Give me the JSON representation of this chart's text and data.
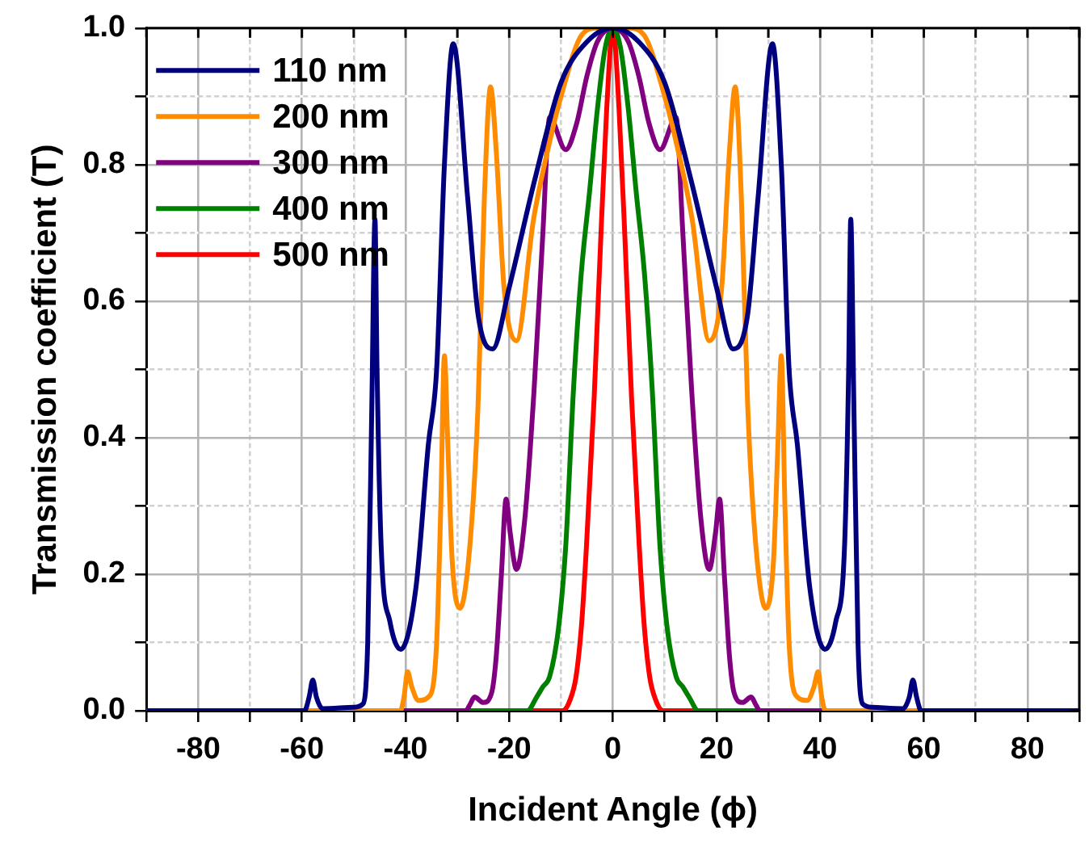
{
  "chart_data": {
    "type": "line",
    "xlabel": "Incident Angle (ϕ)",
    "ylabel": "Transmission coefficient (T)",
    "xlim": [
      -90,
      90
    ],
    "ylim": [
      0,
      1
    ],
    "xticks": [
      {
        "value": -90,
        "label": null
      },
      -80,
      {
        "value": -70,
        "label": null
      },
      -60,
      {
        "value": -50,
        "label": null
      },
      -40,
      {
        "value": -30,
        "label": null
      },
      -20,
      {
        "value": -10,
        "label": null
      },
      0,
      {
        "value": 10,
        "label": null
      },
      20,
      {
        "value": 30,
        "label": null
      },
      40,
      {
        "value": 50,
        "label": null
      },
      60,
      {
        "value": 70,
        "label": null
      },
      80,
      {
        "value": 90,
        "label": null
      }
    ],
    "yticks": [
      {
        "value": 0,
        "label": "0.0"
      },
      {
        "value": 0.1,
        "label": null
      },
      {
        "value": 0.2,
        "label": "0.2"
      },
      {
        "value": 0.3,
        "label": null
      },
      {
        "value": 0.4,
        "label": "0.4"
      },
      {
        "value": 0.5,
        "label": null
      },
      {
        "value": 0.6,
        "label": "0.6"
      },
      {
        "value": 0.7,
        "label": null
      },
      {
        "value": 0.8,
        "label": "0.8"
      },
      {
        "value": 0.9,
        "label": null
      },
      {
        "value": 1,
        "label": "1.0"
      }
    ],
    "grid": true,
    "legend": "top left",
    "marker": "none",
    "line_style": "solid",
    "series": [
      {
        "name": "110 nm",
        "color": "#00007f",
        "x": [
          -90,
          -59.5,
          -58.6,
          -57.9,
          -57.2,
          -56,
          -50,
          -48.2,
          -47.3,
          -46.5,
          -45.9,
          -45.5,
          -44.7,
          -43,
          -40.9,
          -38,
          -35.6,
          -34,
          -32.5,
          -30.8,
          -28,
          -26,
          -23.2,
          -20,
          -15,
          -10,
          -5,
          0,
          5,
          10,
          15,
          20,
          23.2,
          26,
          28,
          30.8,
          32.5,
          34,
          35.6,
          38,
          40.9,
          43,
          44.7,
          45.5,
          45.9,
          46.5,
          47.3,
          48.2,
          50,
          56,
          57.2,
          57.9,
          58.6,
          59.5,
          90
        ],
        "values": [
          0,
          0,
          0.02,
          0.045,
          0.02,
          0.003,
          0.005,
          0.01,
          0.1,
          0.45,
          0.72,
          0.5,
          0.24,
          0.13,
          0.09,
          0.18,
          0.39,
          0.5,
          0.8,
          0.977,
          0.75,
          0.58,
          0.53,
          0.62,
          0.78,
          0.92,
          0.98,
          1,
          0.98,
          0.92,
          0.78,
          0.62,
          0.53,
          0.58,
          0.75,
          0.977,
          0.8,
          0.5,
          0.39,
          0.18,
          0.09,
          0.13,
          0.24,
          0.5,
          0.72,
          0.45,
          0.1,
          0.01,
          0.005,
          0.003,
          0.02,
          0.045,
          0.02,
          0,
          0
        ]
      },
      {
        "name": "200 nm",
        "color": "#ff8c00",
        "x": [
          -90,
          -41,
          -40.3,
          -39.6,
          -38.8,
          -37.5,
          -35.6,
          -34,
          -33.2,
          -32.5,
          -31.8,
          -31,
          -29.5,
          -27.5,
          -26,
          -24.8,
          -23.6,
          -22.5,
          -21,
          -18.6,
          -15.3,
          -12,
          -10,
          -6,
          -3,
          0,
          3,
          6,
          10,
          12,
          15.3,
          18.6,
          21,
          22.5,
          23.6,
          24.8,
          26,
          27.5,
          29.5,
          31,
          31.8,
          32.5,
          33.2,
          34,
          35.6,
          37.5,
          38.8,
          39.6,
          40.3,
          41,
          90
        ],
        "values": [
          0,
          0,
          0.02,
          0.057,
          0.035,
          0.015,
          0.02,
          0.1,
          0.3,
          0.52,
          0.38,
          0.22,
          0.15,
          0.25,
          0.45,
          0.75,
          0.914,
          0.82,
          0.62,
          0.542,
          0.72,
          0.84,
          0.9,
          0.99,
          1,
          1,
          1,
          0.99,
          0.9,
          0.84,
          0.72,
          0.542,
          0.62,
          0.82,
          0.914,
          0.75,
          0.45,
          0.25,
          0.15,
          0.22,
          0.38,
          0.52,
          0.3,
          0.1,
          0.02,
          0.015,
          0.035,
          0.057,
          0.02,
          0,
          0
        ]
      },
      {
        "name": "300 nm",
        "color": "#800080",
        "x": [
          -90,
          -28.4,
          -27.5,
          -26.7,
          -25,
          -23.4,
          -22.5,
          -21.5,
          -20.6,
          -19.8,
          -18.6,
          -17,
          -15.2,
          -13.5,
          -12.2,
          -9.1,
          -7,
          -5,
          -3,
          0,
          3,
          5,
          7,
          9.1,
          12.2,
          13.5,
          15.2,
          17,
          18.6,
          19.8,
          20.6,
          21.5,
          22.5,
          23.4,
          25,
          26.7,
          27.5,
          28.4,
          90
        ],
        "values": [
          0,
          0,
          0.01,
          0.02,
          0.012,
          0.026,
          0.08,
          0.2,
          0.31,
          0.26,
          0.207,
          0.28,
          0.47,
          0.7,
          0.869,
          0.822,
          0.86,
          0.93,
          0.98,
          1,
          0.98,
          0.93,
          0.86,
          0.822,
          0.869,
          0.7,
          0.47,
          0.28,
          0.207,
          0.26,
          0.31,
          0.2,
          0.08,
          0.026,
          0.012,
          0.02,
          0.01,
          0,
          0
        ]
      },
      {
        "name": "400 nm",
        "color": "#008000",
        "x": [
          -90,
          -16.5,
          -14.7,
          -13.5,
          -12.2,
          -10.5,
          -9.1,
          -7.6,
          -6.1,
          -4.5,
          -3,
          -1.5,
          0,
          1.5,
          3,
          4.5,
          6.1,
          7.6,
          9.1,
          10.5,
          12.2,
          13.5,
          14.7,
          16.5,
          90
        ],
        "values": [
          0,
          0,
          0.02,
          0.035,
          0.05,
          0.12,
          0.24,
          0.47,
          0.64,
          0.76,
          0.88,
          0.97,
          1,
          0.97,
          0.88,
          0.76,
          0.64,
          0.47,
          0.24,
          0.12,
          0.05,
          0.035,
          0.02,
          0,
          0
        ]
      },
      {
        "name": "500 nm",
        "color": "#ff0000",
        "x": [
          -90,
          -9.7,
          -8.3,
          -7.1,
          -6,
          -5.1,
          -3.6,
          -2.4,
          -1.2,
          0,
          1.2,
          2.4,
          3.6,
          5.1,
          6,
          7.1,
          8.3,
          9.7,
          90
        ],
        "values": [
          0,
          0,
          0.015,
          0.05,
          0.13,
          0.24,
          0.46,
          0.68,
          0.88,
          1,
          0.88,
          0.68,
          0.46,
          0.24,
          0.13,
          0.05,
          0.015,
          0,
          0
        ]
      }
    ]
  }
}
